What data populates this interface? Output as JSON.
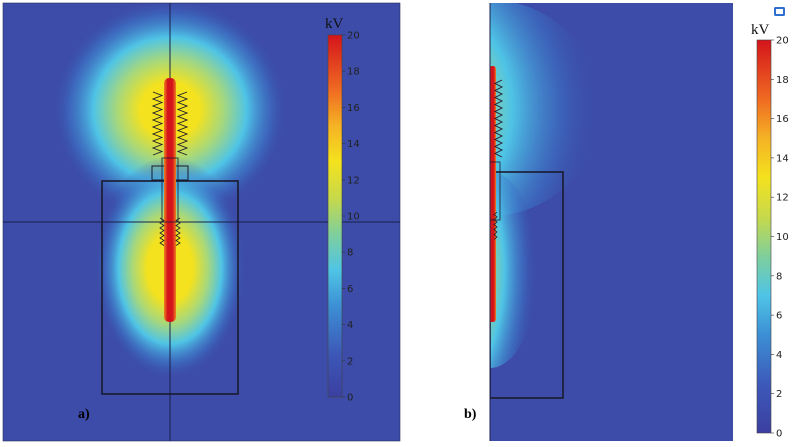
{
  "panels": [
    {
      "id": "a",
      "label": "a)"
    },
    {
      "id": "b",
      "label": "b)"
    }
  ],
  "colorbar": {
    "unit": "kV",
    "min": 0,
    "max": 20,
    "ticks": [
      "20",
      "18",
      "16",
      "14",
      "12",
      "10",
      "8",
      "6",
      "4",
      "2",
      "0"
    ]
  },
  "colors": {
    "background": "#3c4ca8",
    "high": "#d4141b",
    "yellow": "#f4e21e",
    "cyan": "#4fc4e6"
  }
}
